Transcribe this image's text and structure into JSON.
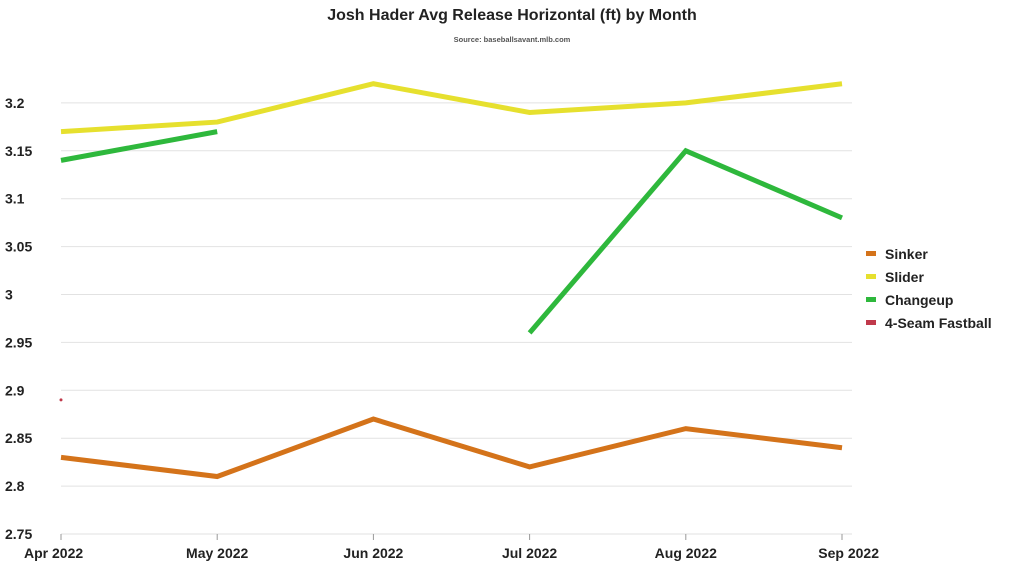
{
  "chart_data": {
    "type": "line",
    "title": "Josh Hader Avg Release Horizontal (ft) by Month",
    "subtitle": "Source: baseballsavant.mlb.com",
    "xlabel": "",
    "ylabel": "",
    "categories": [
      "Apr 2022",
      "May 2022",
      "Jun 2022",
      "Jul 2022",
      "Aug 2022",
      "Sep 2022"
    ],
    "yticks": [
      "2.75",
      "2.8",
      "2.85",
      "2.9",
      "2.95",
      "3",
      "3.05",
      "3.1",
      "3.15",
      "3.2"
    ],
    "ylim": [
      2.75,
      3.25
    ],
    "grid": true,
    "legend_position": "right",
    "series": [
      {
        "name": "Sinker",
        "color": "#d4731a",
        "values": [
          2.83,
          2.81,
          2.87,
          2.82,
          2.86,
          2.84
        ]
      },
      {
        "name": "Slider",
        "color": "#e6e02e",
        "values": [
          3.17,
          3.18,
          3.22,
          3.19,
          3.2,
          3.22
        ]
      },
      {
        "name": "Changeup",
        "color": "#2eb83c",
        "values": [
          3.14,
          3.17,
          null,
          2.96,
          3.15,
          3.08
        ]
      },
      {
        "name": "4-Seam Fastball",
        "color": "#c0394b",
        "values": [
          2.89,
          null,
          null,
          null,
          null,
          null
        ]
      }
    ]
  }
}
